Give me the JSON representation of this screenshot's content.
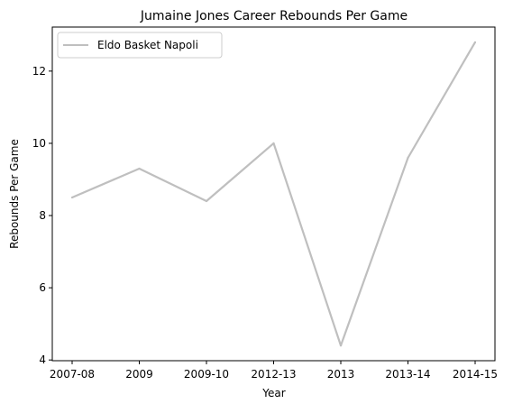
{
  "chart_data": {
    "type": "line",
    "title": "Jumaine Jones Career Rebounds Per Game",
    "xlabel": "Year",
    "ylabel": "Rebounds Per Game",
    "categories": [
      "2007-08",
      "2009",
      "2009-10",
      "2012-13",
      "2013",
      "2013-14",
      "2014-15"
    ],
    "series": [
      {
        "name": "Eldo Basket Napoli",
        "values": [
          8.5,
          9.3,
          8.4,
          10.0,
          4.4,
          9.6,
          12.8
        ],
        "color": "#bfbfbf"
      }
    ],
    "ylim": [
      3.98,
      13.22
    ],
    "yticks": [
      4,
      6,
      8,
      10,
      12
    ],
    "grid": false,
    "legend_position": "upper-left"
  }
}
